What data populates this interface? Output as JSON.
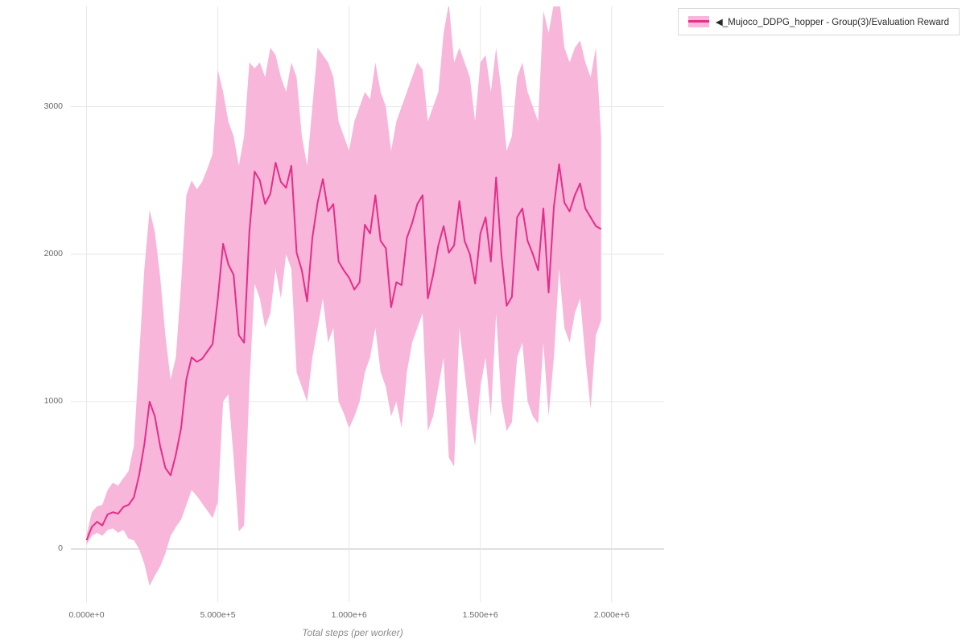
{
  "chart_data": {
    "type": "line",
    "title": "",
    "xlabel": "Total steps (per worker)",
    "ylabel": "",
    "grid": true,
    "legend_position": "top-right",
    "xlim": [
      -60000,
      2200000
    ],
    "ylim": [
      -360,
      3680
    ],
    "xticks": [
      {
        "value": 0,
        "label": "0.000e+0"
      },
      {
        "value": 500000,
        "label": "5.000e+5"
      },
      {
        "value": 1000000,
        "label": "1.000e+6"
      },
      {
        "value": 1500000,
        "label": "1.500e+6"
      },
      {
        "value": 2000000,
        "label": "2.000e+6"
      }
    ],
    "yticks": [
      {
        "value": 0,
        "label": "0"
      },
      {
        "value": 1000,
        "label": "1000"
      },
      {
        "value": 2000,
        "label": "2000"
      },
      {
        "value": 3000,
        "label": "3000"
      }
    ],
    "series": [
      {
        "name": "◀_Mujoco_DDPG_hopper - Group(3)/Evaluation Reward",
        "color": "#e52d8a",
        "band_color": "#f7b6da",
        "x": [
          0,
          20000,
          40000,
          60000,
          80000,
          100000,
          120000,
          140000,
          160000,
          180000,
          200000,
          220000,
          240000,
          260000,
          280000,
          300000,
          320000,
          340000,
          360000,
          380000,
          400000,
          420000,
          440000,
          460000,
          480000,
          500000,
          520000,
          540000,
          560000,
          580000,
          600000,
          620000,
          640000,
          660000,
          680000,
          700000,
          720000,
          740000,
          760000,
          780000,
          800000,
          820000,
          840000,
          860000,
          880000,
          900000,
          920000,
          940000,
          960000,
          980000,
          1000000,
          1020000,
          1040000,
          1060000,
          1080000,
          1100000,
          1120000,
          1140000,
          1160000,
          1180000,
          1200000,
          1220000,
          1240000,
          1260000,
          1280000,
          1300000,
          1320000,
          1340000,
          1360000,
          1380000,
          1400000,
          1420000,
          1440000,
          1460000,
          1480000,
          1500000,
          1520000,
          1540000,
          1560000,
          1580000,
          1600000,
          1620000,
          1640000,
          1660000,
          1680000,
          1700000,
          1720000,
          1740000,
          1760000,
          1780000,
          1800000,
          1820000,
          1840000,
          1860000,
          1880000,
          1900000,
          1920000,
          1940000,
          1960000
        ],
        "y": [
          60,
          150,
          185,
          160,
          235,
          250,
          240,
          285,
          300,
          350,
          500,
          710,
          1000,
          900,
          700,
          550,
          500,
          640,
          820,
          1150,
          1300,
          1270,
          1290,
          1340,
          1390,
          1700,
          2070,
          1930,
          1860,
          1450,
          1400,
          2150,
          2560,
          2500,
          2340,
          2410,
          2620,
          2490,
          2450,
          2600,
          2010,
          1890,
          1680,
          2110,
          2350,
          2510,
          2290,
          2340,
          1950,
          1890,
          1840,
          1760,
          1810,
          2200,
          2140,
          2400,
          2090,
          2040,
          1640,
          1810,
          1790,
          2110,
          2210,
          2340,
          2400,
          1700,
          1860,
          2060,
          2190,
          2010,
          2060,
          2360,
          2090,
          2000,
          1800,
          2140,
          2250,
          1950,
          2520,
          2000,
          1650,
          1710,
          2250,
          2310,
          2090,
          2000,
          1890,
          2310,
          1740,
          2320,
          2610,
          2350,
          2290,
          2400,
          2480,
          2310,
          2250,
          2190,
          2170
        ],
        "lower": [
          30,
          90,
          110,
          90,
          130,
          140,
          110,
          130,
          70,
          60,
          0,
          -100,
          -250,
          -180,
          -120,
          -30,
          90,
          150,
          200,
          300,
          400,
          360,
          310,
          260,
          210,
          320,
          1000,
          1050,
          620,
          120,
          160,
          1100,
          1800,
          1700,
          1500,
          1600,
          1900,
          1700,
          2000,
          1900,
          1200,
          1100,
          1000,
          1300,
          1500,
          1700,
          1400,
          1500,
          1000,
          920,
          820,
          900,
          1000,
          1200,
          1300,
          1500,
          1200,
          1100,
          900,
          1000,
          820,
          1200,
          1400,
          1500,
          1600,
          800,
          900,
          1100,
          1300,
          620,
          560,
          1500,
          1200,
          900,
          700,
          1100,
          1300,
          900,
          1600,
          1000,
          800,
          860,
          1300,
          1400,
          1000,
          900,
          850,
          1400,
          900,
          1300,
          1900,
          1500,
          1400,
          1600,
          1700,
          1300,
          950,
          1450,
          1550
        ],
        "upper": [
          95,
          250,
          290,
          300,
          400,
          450,
          430,
          480,
          530,
          700,
          1300,
          1900,
          2300,
          2150,
          1850,
          1450,
          1150,
          1300,
          1800,
          2400,
          2500,
          2440,
          2490,
          2580,
          2680,
          3250,
          3100,
          2900,
          2800,
          2600,
          2800,
          3300,
          3260,
          3300,
          3200,
          3400,
          3350,
          3200,
          3100,
          3300,
          3200,
          2800,
          2600,
          3000,
          3400,
          3350,
          3300,
          3200,
          2900,
          2800,
          2700,
          2900,
          3000,
          3100,
          3050,
          3300,
          3100,
          3000,
          2700,
          2900,
          3000,
          3100,
          3200,
          3300,
          3250,
          2900,
          3000,
          3100,
          3500,
          3700,
          3300,
          3400,
          3300,
          3200,
          2900,
          3300,
          3350,
          3100,
          3400,
          3100,
          2700,
          2800,
          3200,
          3300,
          3100,
          3000,
          2900,
          3650,
          3500,
          3700,
          3750,
          3400,
          3300,
          3400,
          3450,
          3300,
          3200,
          3400,
          2800
        ]
      }
    ]
  },
  "legend": {
    "label": "◀_Mujoco_DDPG_hopper - Group(3)/Evaluation Reward"
  }
}
